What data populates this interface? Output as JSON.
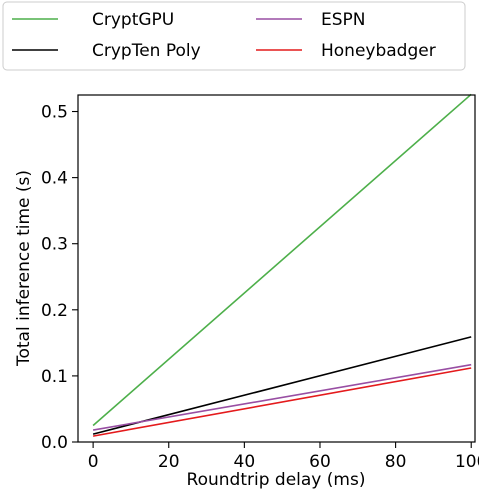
{
  "chart_data": {
    "type": "line",
    "xlabel": "Roundtrip delay (ms)",
    "ylabel": "Total inference time (s)",
    "xlim": [
      -4,
      101
    ],
    "ylim": [
      0,
      0.525
    ],
    "xticks": [
      0,
      20,
      40,
      60,
      80,
      100
    ],
    "yticks": [
      0.0,
      0.1,
      0.2,
      0.3,
      0.4,
      0.5
    ],
    "ytick_labels": [
      "0.0",
      "0.1",
      "0.2",
      "0.3",
      "0.4",
      "0.5"
    ],
    "grid": false,
    "legend_position": "top, outside plot, 2 columns",
    "series": [
      {
        "name": "CryptGPU",
        "color": "#4daf4a",
        "x": [
          0,
          100
        ],
        "y": [
          0.025,
          0.526
        ]
      },
      {
        "name": "CrypTen Poly",
        "color": "#000000",
        "x": [
          0,
          100
        ],
        "y": [
          0.012,
          0.159
        ]
      },
      {
        "name": "ESPN",
        "color": "#984ea3",
        "x": [
          0,
          100
        ],
        "y": [
          0.018,
          0.117
        ]
      },
      {
        "name": "Honeybadger",
        "color": "#e41a1c",
        "x": [
          0,
          100
        ],
        "y": [
          0.009,
          0.112
        ]
      }
    ]
  }
}
